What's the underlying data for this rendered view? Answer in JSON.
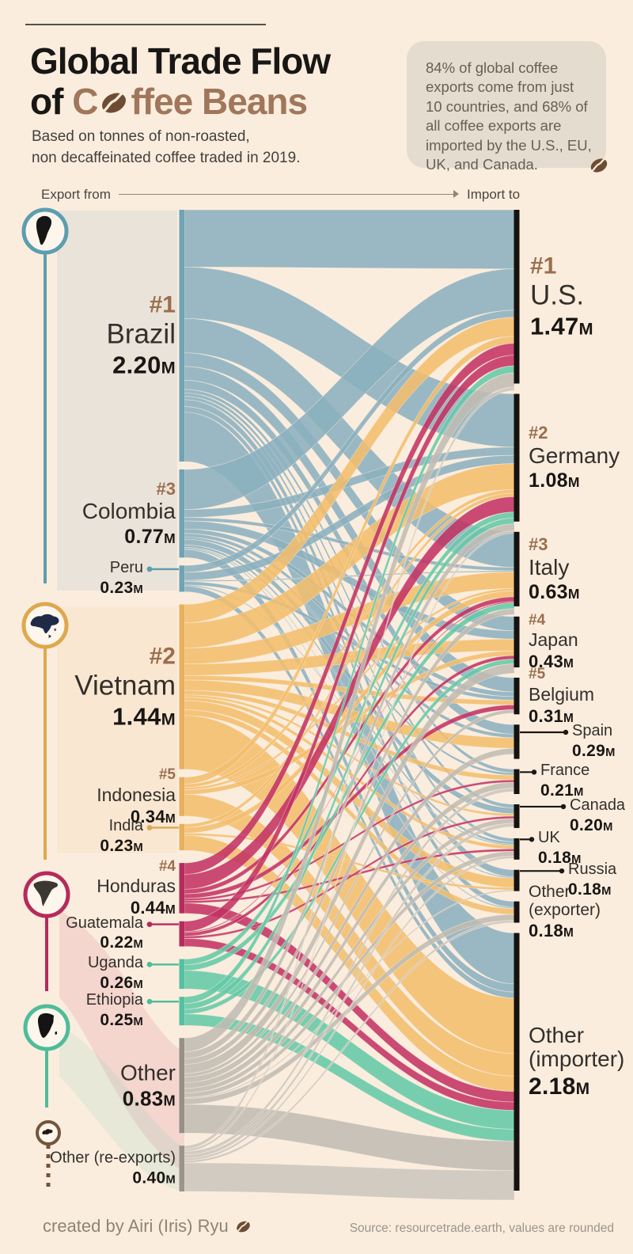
{
  "header": {
    "title_line1": "Global Trade Flow",
    "title_line2_black": "of",
    "title_line2_brown_start": "C",
    "title_line2_brown_end": "ffee Beans",
    "subtitle_line1": "Based on tonnes of non-roasted,",
    "subtitle_line2": "non decaffeinated coffee traded in 2019."
  },
  "callout": {
    "text": "84% of global coffee exports come from just 10 countries, and 68% of all coffee exports are imported by the U.S., EU, UK, and Canada."
  },
  "column_headers": {
    "left": "Export from",
    "right": "Import to"
  },
  "footer": {
    "credit": "created by Airi (Iris) Ryu",
    "source": "Source: resourcetrade.earth, values are rounded"
  },
  "chart_data": {
    "type": "sankey",
    "title": "Global Trade Flow of Coffee Beans",
    "unit": "million tonnes",
    "unit_suffix": "M",
    "exporters": [
      {
        "id": "brazil",
        "name": "Brazil",
        "rank": "#1",
        "value": 2.2,
        "display": "2.20",
        "continent": "south-america",
        "tier": "t-xl"
      },
      {
        "id": "colombia",
        "name": "Colombia",
        "rank": "#3",
        "value": 0.77,
        "display": "0.77",
        "continent": "south-america",
        "tier": "t-lg"
      },
      {
        "id": "peru",
        "name": "Peru",
        "value": 0.23,
        "display": "0.23",
        "continent": "south-america",
        "tier": "t-sm",
        "connector": true
      },
      {
        "id": "vietnam",
        "name": "Vietnam",
        "rank": "#2",
        "value": 1.44,
        "display": "1.44",
        "continent": "asia",
        "tier": "t-xl"
      },
      {
        "id": "indonesia",
        "name": "Indonesia",
        "rank": "#5",
        "value": 0.34,
        "display": "0.34",
        "continent": "asia",
        "tier": "t-md"
      },
      {
        "id": "india",
        "name": "India",
        "value": 0.23,
        "display": "0.23",
        "continent": "asia",
        "tier": "t-sm",
        "connector": true
      },
      {
        "id": "honduras",
        "name": "Honduras",
        "rank": "#4",
        "value": 0.44,
        "display": "0.44",
        "continent": "central-america",
        "tier": "t-md"
      },
      {
        "id": "guatemala",
        "name": "Guatemala",
        "value": 0.22,
        "display": "0.22",
        "continent": "central-america",
        "tier": "t-sm",
        "connector": true
      },
      {
        "id": "uganda",
        "name": "Uganda",
        "value": 0.26,
        "display": "0.26",
        "continent": "africa",
        "tier": "t-sm",
        "connector": true
      },
      {
        "id": "ethiopia",
        "name": "Ethiopia",
        "value": 0.25,
        "display": "0.25",
        "continent": "africa",
        "tier": "t-sm",
        "connector": true
      },
      {
        "id": "other_ex",
        "name": "Other",
        "value": 0.83,
        "display": "0.83",
        "continent": "other",
        "tier": "t-other"
      },
      {
        "id": "reexports",
        "name": "Other (re-exports)",
        "value": 0.4,
        "display": "0.40",
        "continent": "europe",
        "tier": "t-reex"
      }
    ],
    "importers": [
      {
        "id": "us",
        "name": "U.S.",
        "rank": "#1",
        "value": 1.47,
        "display": "1.47",
        "tier": "t-xl"
      },
      {
        "id": "germany",
        "name": "Germany",
        "rank": "#2",
        "value": 1.08,
        "display": "1.08",
        "tier": "t-lg"
      },
      {
        "id": "italy",
        "name": "Italy",
        "rank": "#3",
        "value": 0.63,
        "display": "0.63",
        "tier": "t-lg"
      },
      {
        "id": "japan",
        "name": "Japan",
        "rank": "#4",
        "value": 0.43,
        "display": "0.43",
        "tier": "t-md"
      },
      {
        "id": "belgium",
        "name": "Belgium",
        "rank": "#5",
        "value": 0.31,
        "display": "0.31",
        "tier": "t-md"
      },
      {
        "id": "spain",
        "name": "Spain",
        "value": 0.29,
        "display": "0.29",
        "tier": "t-sm",
        "connector": 58
      },
      {
        "id": "france",
        "name": "France",
        "value": 0.21,
        "display": "0.21",
        "tier": "t-sm",
        "connector": 18
      },
      {
        "id": "canada",
        "name": "Canada",
        "value": 0.2,
        "display": "0.20",
        "tier": "t-sm",
        "connector": 55
      },
      {
        "id": "uk",
        "name": "UK",
        "value": 0.18,
        "display": "0.18",
        "tier": "t-sm",
        "connector": 15
      },
      {
        "id": "russia",
        "name": "Russia",
        "value": 0.18,
        "display": "0.18",
        "tier": "t-sm",
        "connector": 53
      },
      {
        "id": "other_exporter",
        "name": "Other",
        "sub": "(exporter)",
        "value": 0.18,
        "display": "0.18",
        "tier": "t-oexp"
      },
      {
        "id": "other_importer",
        "name": "Other",
        "sub": "(importer)",
        "value": 2.18,
        "display": "2.18",
        "tier": "t-oimp"
      }
    ],
    "continents": [
      {
        "id": "south-america",
        "icon": "south-america-icon",
        "color": "#8AB0BF"
      },
      {
        "id": "asia",
        "icon": "asia-icon",
        "color": "#F2BE6C"
      },
      {
        "id": "central-america",
        "icon": "north-america-icon",
        "color": "#C23163"
      },
      {
        "id": "africa",
        "icon": "africa-icon",
        "color": "#63C9A8"
      },
      {
        "id": "other",
        "icon": null,
        "color": "#C0BBB2"
      },
      {
        "id": "europe",
        "icon": "europe-icon",
        "color": "#CBC6BD"
      }
    ],
    "colors": {
      "south-america": {
        "flow": "#8AB0BF",
        "bar": "#6FA3B5",
        "accent": "#5D9DB0"
      },
      "asia": {
        "flow": "#F2BE6C",
        "bar": "#E8B05C",
        "accent": "#DFA84E"
      },
      "central-america": {
        "flow": "#C23163",
        "bar": "#B52B5B",
        "accent": "#B52B5B"
      },
      "africa": {
        "flow": "#63C9A8",
        "bar": "#54C1A0",
        "accent": "#4FBC9A"
      },
      "other": {
        "flow": "#C0BBB2",
        "bar": "#969086",
        "accent": "#969086"
      },
      "europe": {
        "flow": "#CBC6BD",
        "bar": "#9A948A",
        "accent": "#74543B"
      },
      "importer_bar": "#16120F",
      "rank": "#9A6E4E",
      "background": "#FBEDDE"
    },
    "flows": [
      [
        "brazil",
        "us",
        0.5
      ],
      [
        "brazil",
        "germany",
        0.45
      ],
      [
        "brazil",
        "italy",
        0.3
      ],
      [
        "brazil",
        "japan",
        0.12
      ],
      [
        "brazil",
        "belgium",
        0.12
      ],
      [
        "brazil",
        "spain",
        0.08
      ],
      [
        "brazil",
        "france",
        0.03
      ],
      [
        "brazil",
        "canada",
        0.03
      ],
      [
        "brazil",
        "uk",
        0.03
      ],
      [
        "brazil",
        "russia",
        0.06
      ],
      [
        "brazil",
        "other_exporter",
        0.05
      ],
      [
        "brazil",
        "other_importer",
        0.43
      ],
      [
        "colombia",
        "us",
        0.35
      ],
      [
        "colombia",
        "germany",
        0.07
      ],
      [
        "colombia",
        "italy",
        0.03
      ],
      [
        "colombia",
        "japan",
        0.07
      ],
      [
        "colombia",
        "belgium",
        0.04
      ],
      [
        "colombia",
        "spain",
        0.03
      ],
      [
        "colombia",
        "france",
        0.02
      ],
      [
        "colombia",
        "canada",
        0.05
      ],
      [
        "colombia",
        "uk",
        0.02
      ],
      [
        "colombia",
        "russia",
        0.01
      ],
      [
        "colombia",
        "other_exporter",
        0.01
      ],
      [
        "colombia",
        "other_importer",
        0.07
      ],
      [
        "peru",
        "us",
        0.06
      ],
      [
        "peru",
        "germany",
        0.07
      ],
      [
        "peru",
        "italy",
        0.01
      ],
      [
        "peru",
        "belgium",
        0.03
      ],
      [
        "peru",
        "uk",
        0.01
      ],
      [
        "peru",
        "other_importer",
        0.05
      ],
      [
        "vietnam",
        "us",
        0.16
      ],
      [
        "vietnam",
        "germany",
        0.22
      ],
      [
        "vietnam",
        "italy",
        0.14
      ],
      [
        "vietnam",
        "japan",
        0.1
      ],
      [
        "vietnam",
        "belgium",
        0.04
      ],
      [
        "vietnam",
        "spain",
        0.09
      ],
      [
        "vietnam",
        "france",
        0.04
      ],
      [
        "vietnam",
        "canada",
        0.02
      ],
      [
        "vietnam",
        "uk",
        0.03
      ],
      [
        "vietnam",
        "russia",
        0.08
      ],
      [
        "vietnam",
        "other_exporter",
        0.05
      ],
      [
        "vietnam",
        "other_importer",
        0.47
      ],
      [
        "indonesia",
        "us",
        0.06
      ],
      [
        "indonesia",
        "germany",
        0.03
      ],
      [
        "indonesia",
        "italy",
        0.02
      ],
      [
        "indonesia",
        "japan",
        0.04
      ],
      [
        "indonesia",
        "other_importer",
        0.19
      ],
      [
        "india",
        "germany",
        0.03
      ],
      [
        "india",
        "italy",
        0.05
      ],
      [
        "india",
        "russia",
        0.02
      ],
      [
        "india",
        "other_importer",
        0.13
      ],
      [
        "honduras",
        "us",
        0.1
      ],
      [
        "honduras",
        "germany",
        0.13
      ],
      [
        "honduras",
        "italy",
        0.04
      ],
      [
        "honduras",
        "belgium",
        0.04
      ],
      [
        "honduras",
        "france",
        0.02
      ],
      [
        "honduras",
        "uk",
        0.02
      ],
      [
        "honduras",
        "other_importer",
        0.09
      ],
      [
        "guatemala",
        "us",
        0.09
      ],
      [
        "guatemala",
        "italy",
        0.01
      ],
      [
        "guatemala",
        "japan",
        0.03
      ],
      [
        "guatemala",
        "canada",
        0.02
      ],
      [
        "guatemala",
        "other_importer",
        0.07
      ],
      [
        "uganda",
        "germany",
        0.05
      ],
      [
        "uganda",
        "italy",
        0.05
      ],
      [
        "uganda",
        "other_importer",
        0.16
      ],
      [
        "ethiopia",
        "us",
        0.06
      ],
      [
        "ethiopia",
        "germany",
        0.05
      ],
      [
        "ethiopia",
        "japan",
        0.04
      ],
      [
        "ethiopia",
        "other_importer",
        0.1
      ],
      [
        "other_ex",
        "us",
        0.12
      ],
      [
        "other_ex",
        "germany",
        0.06
      ],
      [
        "other_ex",
        "italy",
        0.05
      ],
      [
        "other_ex",
        "japan",
        0.08
      ],
      [
        "other_ex",
        "belgium",
        0.03
      ],
      [
        "other_ex",
        "spain",
        0.05
      ],
      [
        "other_ex",
        "france",
        0.05
      ],
      [
        "other_ex",
        "canada",
        0.04
      ],
      [
        "other_ex",
        "uk",
        0.04
      ],
      [
        "other_ex",
        "russia",
        0.01
      ],
      [
        "other_ex",
        "other_exporter",
        0.05
      ],
      [
        "other_ex",
        "other_importer",
        0.25
      ],
      [
        "reexports",
        "us",
        0.03
      ],
      [
        "reexports",
        "germany",
        0.02
      ],
      [
        "reexports",
        "france",
        0.03
      ],
      [
        "reexports",
        "canada",
        0.03
      ],
      [
        "reexports",
        "uk",
        0.02
      ],
      [
        "reexports",
        "other_exporter",
        0.02
      ],
      [
        "reexports",
        "other_importer",
        0.25
      ]
    ],
    "layout_hint": {
      "left_column": "exporters",
      "right_column": "importers",
      "flows_colored_by": "exporter continent"
    }
  }
}
